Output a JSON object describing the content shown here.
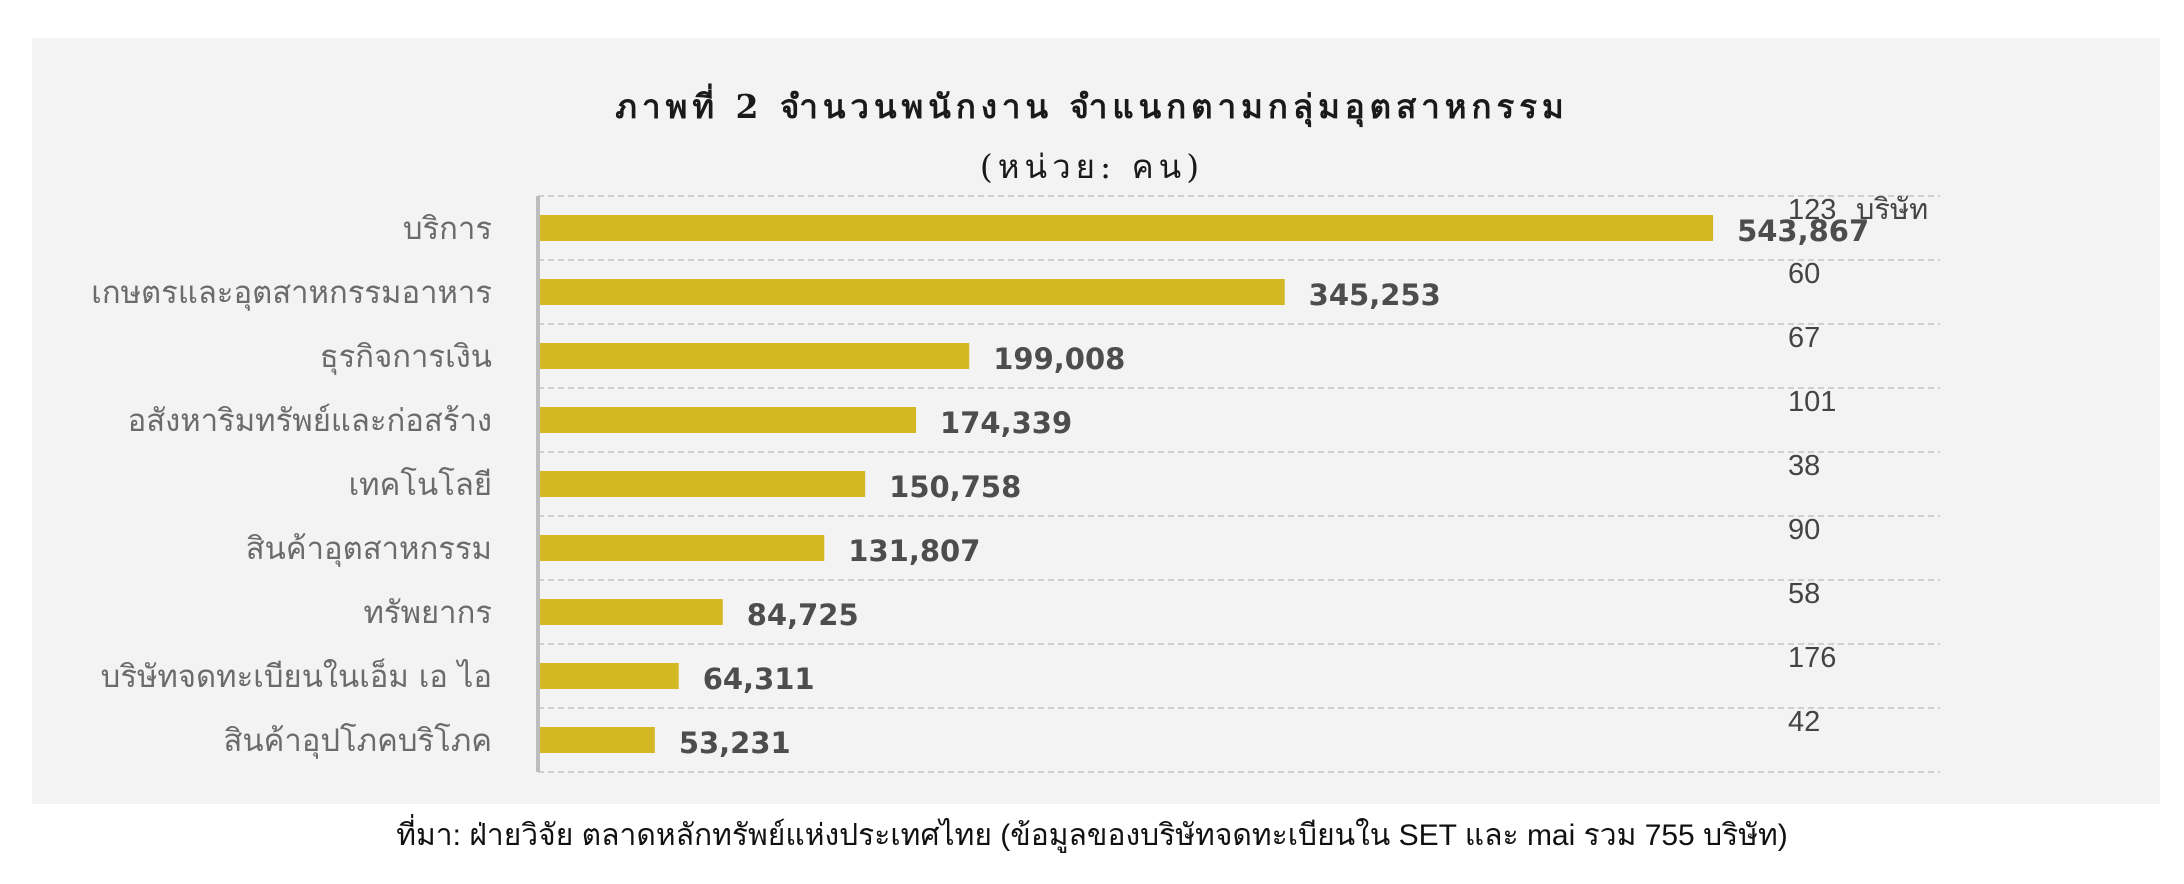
{
  "chart_data": {
    "type": "bar",
    "orientation": "horizontal",
    "title": "ภาพที่ 2 จำนวนพนักงาน จำแนกตามกลุ่มอุตสาหกรรม",
    "subtitle": "(หน่วย: คน)",
    "categories": [
      "บริการ",
      "เกษตรและอุตสาหกรรมอาหาร",
      "ธุรกิจการเงิน",
      "อสังหาริมทรัพย์และก่อสร้าง",
      "เทคโนโลยี",
      "สินค้าอุตสาหกรรม",
      "ทรัพยากร",
      "บริษัทจดทะเบียนในเอ็ม เอ ไอ",
      "สินค้าอุปโภคบริโภค"
    ],
    "series": [
      {
        "values": [
          543867,
          345253,
          199008,
          174339,
          150758,
          131807,
          84725,
          64311,
          53231
        ],
        "value_labels": [
          "543,867",
          "345,253",
          "199,008",
          "174,339",
          "150,758",
          "131,807",
          "84,725",
          "64,311",
          "53,231"
        ],
        "color": "#d4b823"
      }
    ],
    "company_counts": [
      "123",
      "60",
      "67",
      "101",
      "38",
      "90",
      "58",
      "176",
      "42"
    ],
    "company_unit": "บริษัท",
    "xlim": [
      0,
      650000
    ],
    "grid": true,
    "legend": "none"
  },
  "source_note": "ที่มา: ฝ่ายวิจัย ตลาดหลักทรัพย์แห่งประเทศไทย (ข้อมูลของบริษัทจดทะเบียนใน SET และ mai รวม 755 บริษัท)",
  "colors": {
    "bar": "#d4b823",
    "panel": "#f3f3f3",
    "grid": "#cfcfcf",
    "axis": "#bdbdbd"
  }
}
